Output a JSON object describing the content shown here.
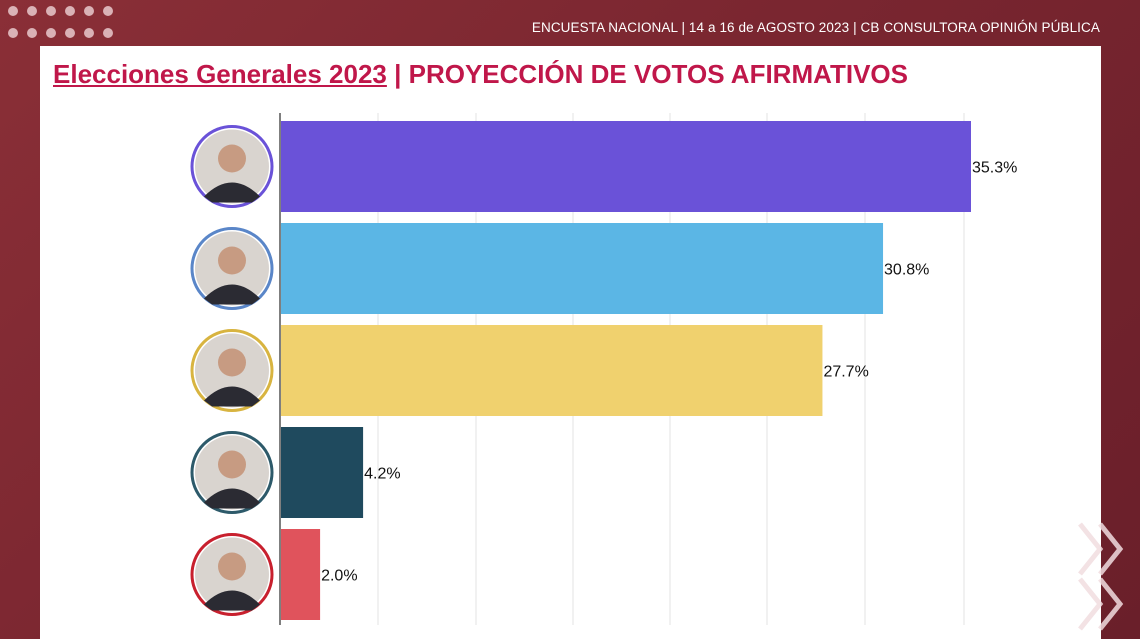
{
  "header": {
    "survey_info": "ENCUESTA NACIONAL | 14 a 16 de AGOSTO 2023 | CB CONSULTORA OPINIÓN PÚBLICA"
  },
  "title": {
    "main": "Elecciones Generales 2023",
    "separator": " | ",
    "sub": "PROYECCIÓN DE VOTOS AFIRMATIVOS"
  },
  "colors": {
    "title": "#c0174a",
    "background": "#7a2630"
  },
  "chart_data": {
    "type": "bar",
    "orientation": "horizontal",
    "xlim": [
      0,
      35.3
    ],
    "grid": true,
    "legend": "none",
    "value_suffix": "%",
    "bars": [
      {
        "value": 35.3,
        "label": "35.3%",
        "color": "#6a52d8",
        "ring": "#6a52d8",
        "icon": "candidate-portrait-1"
      },
      {
        "value": 30.8,
        "label": "30.8%",
        "color": "#5bb6e5",
        "ring": "#5a86c8",
        "icon": "candidate-portrait-2"
      },
      {
        "value": 27.7,
        "label": "27.7%",
        "color": "#f0d16e",
        "ring": "#d8b440",
        "icon": "candidate-portrait-3"
      },
      {
        "value": 4.2,
        "label": "4.2%",
        "color": "#1f4a5e",
        "ring": "#2d5a6a",
        "icon": "candidate-portrait-4"
      },
      {
        "value": 2.0,
        "label": "2.0%",
        "color": "#e0535c",
        "ring": "#c8202e",
        "icon": "candidate-portrait-5"
      }
    ]
  }
}
